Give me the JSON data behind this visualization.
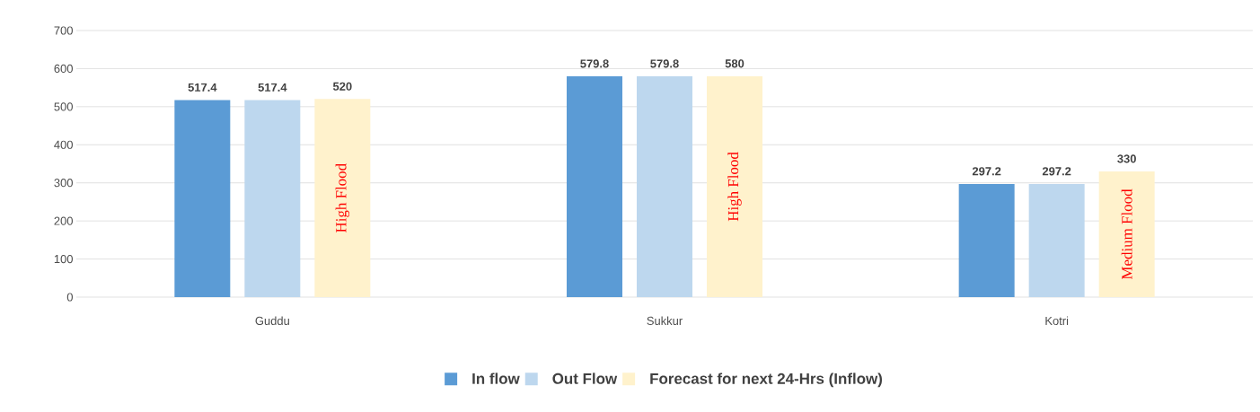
{
  "chart_data": {
    "type": "bar",
    "categories": [
      "Guddu",
      "Sukkur",
      "Kotri"
    ],
    "series": [
      {
        "name": "In flow",
        "color": "#5b9bd5",
        "values": [
          517.4,
          579.8,
          297.2
        ]
      },
      {
        "name": "Out Flow",
        "color": "#bdd7ee",
        "values": [
          517.4,
          579.8,
          297.2
        ]
      },
      {
        "name": "Forecast for next 24-Hrs (Inflow)",
        "color": "#fff2cc",
        "values": [
          520,
          580,
          330
        ]
      }
    ],
    "ylim": [
      0,
      700
    ],
    "yticks": [
      0,
      100,
      200,
      300,
      400,
      500,
      600,
      700
    ],
    "grid": "y",
    "legend": "bottom",
    "data_labels": true,
    "annotations": [
      "High Flood",
      "High Flood",
      "Medium Flood"
    ]
  }
}
